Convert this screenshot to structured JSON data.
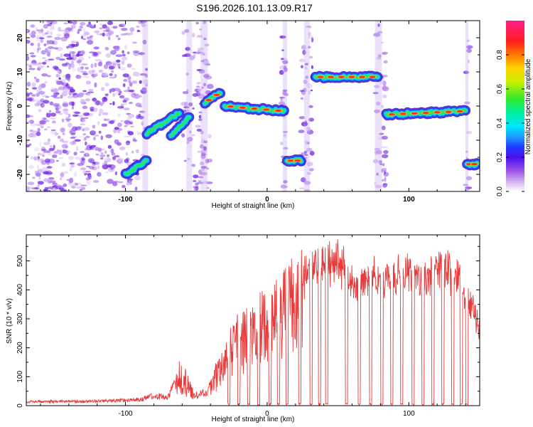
{
  "title": "S196.2026.101.13.09.R17",
  "chart_data": [
    {
      "type": "heatmap",
      "name": "spectrogram",
      "xlabel": "Height of straight line (km)",
      "ylabel": "Frequency (Hz)",
      "xlim": [
        -170,
        150
      ],
      "ylim": [
        -25,
        25
      ],
      "xticks": [
        -100,
        0,
        100
      ],
      "yticks": [
        -20,
        -10,
        0,
        10,
        20
      ],
      "colorbar": {
        "label": "Normalized spectral amplitude",
        "range": [
          0,
          1
        ],
        "ticks": [
          "0.0",
          "0.2",
          "0.4",
          "0.6",
          "0.8"
        ]
      },
      "ridge": [
        {
          "x0": -100,
          "x1": -85,
          "f0": -20,
          "f1": -16
        },
        {
          "x0": -85,
          "x1": -62,
          "f0": -8,
          "f1": -2
        },
        {
          "x0": -68,
          "x1": -55,
          "f0": -9,
          "f1": -3
        },
        {
          "x0": -44,
          "x1": -33,
          "f0": 1,
          "f1": 4
        },
        {
          "x0": -30,
          "x1": 12,
          "f0": 0,
          "f1": -1.5
        },
        {
          "x0": 14,
          "x1": 24,
          "f0": -16,
          "f1": -16
        },
        {
          "x0": 34,
          "x1": 78,
          "f0": 8.5,
          "f1": 8.5
        },
        {
          "x0": 84,
          "x1": 140,
          "f0": -2.5,
          "f1": -1.5
        },
        {
          "x0": 141,
          "x1": 148,
          "f0": -17,
          "f1": -17
        }
      ]
    },
    {
      "type": "line",
      "name": "snr",
      "xlabel": "Height of straight line (km)",
      "ylabel": "SNR (10 * v/v)",
      "xlim": [
        -170,
        150
      ],
      "ylim": [
        0,
        590
      ],
      "xticks": [
        -100,
        0,
        100
      ],
      "yticks": [
        0,
        100,
        200,
        300,
        400,
        500
      ],
      "color": "#e83a3a",
      "envelope": [
        [
          -170,
          18
        ],
        [
          -120,
          20
        ],
        [
          -90,
          28
        ],
        [
          -80,
          45
        ],
        [
          -70,
          40
        ],
        [
          -62,
          130
        ],
        [
          -58,
          110
        ],
        [
          -52,
          45
        ],
        [
          -42,
          60
        ],
        [
          -35,
          150
        ],
        [
          -28,
          240
        ],
        [
          -20,
          300
        ],
        [
          -10,
          340
        ],
        [
          0,
          380
        ],
        [
          10,
          430
        ],
        [
          20,
          480
        ],
        [
          30,
          520
        ],
        [
          40,
          545
        ],
        [
          50,
          555
        ],
        [
          55,
          530
        ],
        [
          60,
          470
        ],
        [
          70,
          480
        ],
        [
          80,
          500
        ],
        [
          90,
          500
        ],
        [
          100,
          500
        ],
        [
          105,
          480
        ],
        [
          115,
          510
        ],
        [
          125,
          530
        ],
        [
          135,
          500
        ],
        [
          140,
          420
        ],
        [
          145,
          390
        ],
        [
          150,
          290
        ]
      ],
      "dropouts": [
        -27,
        -20,
        -13,
        -6,
        2,
        8,
        14,
        23,
        31,
        37,
        42,
        56,
        65,
        73,
        81,
        88,
        95,
        103,
        110,
        117,
        124,
        131,
        137,
        141
      ]
    }
  ]
}
